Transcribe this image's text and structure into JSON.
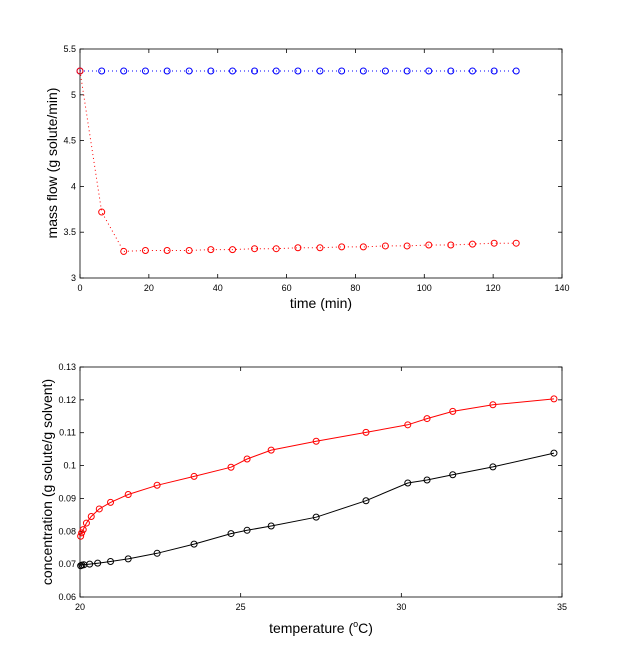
{
  "chart_data": [
    {
      "type": "line",
      "xlabel": "time (min)",
      "ylabel": "mass flow (g solute/min)",
      "xlim": [
        0,
        140
      ],
      "ylim": [
        3,
        5.5
      ],
      "xticks": [
        0,
        20,
        40,
        60,
        80,
        100,
        120,
        140
      ],
      "yticks": [
        3,
        3.5,
        4,
        4.5,
        5,
        5.5
      ],
      "xtick_labels": [
        "0",
        "20",
        "40",
        "60",
        "80",
        "100",
        "120",
        "140"
      ],
      "ytick_labels": [
        "3",
        "3.5",
        "4",
        "4.5",
        "5",
        "5.5"
      ],
      "grid": false,
      "series": [
        {
          "color": "#0000ff",
          "line_style": "dotted",
          "marker": "circle",
          "x": [
            0,
            6.3,
            12.7,
            19,
            25.3,
            31.7,
            38,
            44.3,
            50.7,
            57,
            63.3,
            69.7,
            76,
            82.3,
            88.7,
            95,
            101.3,
            107.7,
            114,
            120.3,
            126.7
          ],
          "y": [
            5.26,
            5.26,
            5.26,
            5.26,
            5.26,
            5.26,
            5.26,
            5.26,
            5.26,
            5.26,
            5.26,
            5.26,
            5.26,
            5.26,
            5.26,
            5.26,
            5.26,
            5.26,
            5.26,
            5.26,
            5.26
          ]
        },
        {
          "color": "#ff0000",
          "line_style": "dotted",
          "marker": "circle",
          "x": [
            0,
            6.3,
            12.7,
            19,
            25.3,
            31.7,
            38,
            44.3,
            50.7,
            57,
            63.3,
            69.7,
            76,
            82.3,
            88.7,
            95,
            101.3,
            107.7,
            114,
            120.3,
            126.7
          ],
          "y": [
            5.26,
            3.72,
            3.29,
            3.3,
            3.3,
            3.3,
            3.31,
            3.31,
            3.32,
            3.32,
            3.33,
            3.33,
            3.34,
            3.34,
            3.35,
            3.35,
            3.36,
            3.36,
            3.37,
            3.38,
            3.38
          ]
        }
      ]
    },
    {
      "type": "line",
      "xlabel_text": "temperature (",
      "xlabel_sup": "o",
      "xlabel_tail": "C)",
      "ylabel": "concentration (g solute/g solvent)",
      "xlim": [
        20,
        35
      ],
      "ylim": [
        0.06,
        0.13
      ],
      "xticks": [
        20,
        25,
        30,
        35
      ],
      "yticks": [
        0.06,
        0.07,
        0.08,
        0.09,
        0.1,
        0.11,
        0.12,
        0.13
      ],
      "xtick_labels": [
        "20",
        "25",
        "30",
        "35"
      ],
      "ytick_labels": [
        "0.06",
        "0.07",
        "0.08",
        "0.09",
        "0.1",
        "0.11",
        "0.12",
        "0.13"
      ],
      "grid": false,
      "series": [
        {
          "color": "#ff0000",
          "line_style": "solid",
          "marker": "circle",
          "x": [
            20.02,
            20.05,
            20.1,
            20.2,
            20.35,
            20.6,
            20.95,
            21.5,
            22.4,
            23.55,
            24.7,
            25.2,
            25.95,
            27.35,
            28.9,
            30.2,
            30.8,
            31.6,
            32.85,
            34.75
          ],
          "y": [
            0.0785,
            0.0795,
            0.0805,
            0.0825,
            0.0845,
            0.0868,
            0.0888,
            0.0912,
            0.094,
            0.0967,
            0.0995,
            0.102,
            0.1047,
            0.1074,
            0.1101,
            0.1124,
            0.1143,
            0.1165,
            0.1185,
            0.1203
          ]
        },
        {
          "color": "#000000",
          "line_style": "solid",
          "marker": "circle",
          "x": [
            20.02,
            20.06,
            20.12,
            20.3,
            20.55,
            20.95,
            21.5,
            22.4,
            23.55,
            24.7,
            25.2,
            25.95,
            27.35,
            28.9,
            30.2,
            30.8,
            31.6,
            32.85,
            34.75
          ],
          "y": [
            0.0695,
            0.0697,
            0.0698,
            0.07,
            0.0703,
            0.0708,
            0.0716,
            0.0733,
            0.0761,
            0.0793,
            0.0803,
            0.0816,
            0.0843,
            0.0893,
            0.0947,
            0.0956,
            0.0972,
            0.0996,
            0.1038
          ]
        }
      ]
    }
  ]
}
